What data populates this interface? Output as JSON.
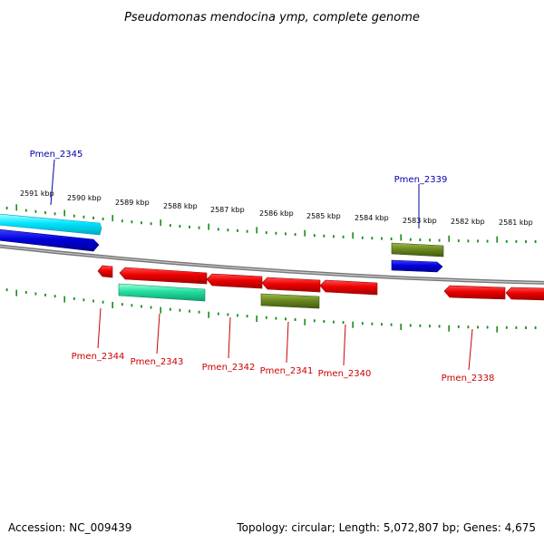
{
  "title": "Pseudomonas mendocina ymp, complete genome",
  "ticks": [
    "2591 kbp",
    "2590 kbp",
    "2589 kbp",
    "2588 kbp",
    "2587 kbp",
    "2586 kbp",
    "2585 kbp",
    "2584 kbp",
    "2583 kbp",
    "2582 kbp",
    "2581 kbp"
  ],
  "genes_top": [
    "Pmen_2345",
    "Pmen_2339"
  ],
  "genes_bottom": [
    "Pmen_2344",
    "Pmen_2343",
    "Pmen_2342",
    "Pmen_2341",
    "Pmen_2340",
    "Pmen_2338"
  ],
  "footer": {
    "accession": "Accession: NC_009439",
    "topology": "Topology: circular; Length: 5,072,807 bp; Genes: 4,675"
  },
  "colors": {
    "tick_green": "#1a8a1a",
    "gene_red": "#ee0000",
    "gene_blue": "#0000dd",
    "gene_cyan": "#00e5ff",
    "gene_teal": "#22e0a0",
    "gene_olive": "#6b8a1e",
    "backbone": "#888888"
  }
}
